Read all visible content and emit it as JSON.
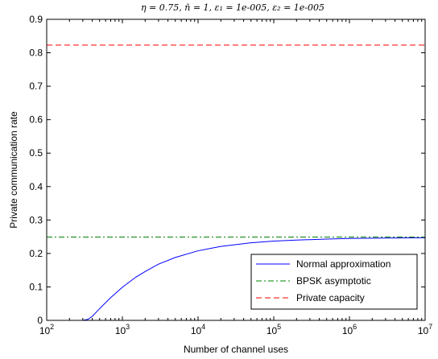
{
  "chart_data": {
    "type": "line",
    "title": "η = 0.75, n̄ = 1, ε₁ = 1e-005, ε₂ = 1e-005",
    "xlabel": "Number of channel uses",
    "ylabel": "Private communication rate",
    "xscale": "log",
    "xlim": [
      100,
      10000000
    ],
    "ylim": [
      0,
      0.9
    ],
    "grid": false,
    "legend_position": "bottom-right",
    "x_ticks": [
      {
        "value": 100,
        "base": "10",
        "exp": "2"
      },
      {
        "value": 1000,
        "base": "10",
        "exp": "3"
      },
      {
        "value": 10000,
        "base": "10",
        "exp": "4"
      },
      {
        "value": 100000,
        "base": "10",
        "exp": "5"
      },
      {
        "value": 1000000,
        "base": "10",
        "exp": "6"
      },
      {
        "value": 10000000,
        "base": "10",
        "exp": "7"
      }
    ],
    "y_ticks": [
      {
        "value": 0,
        "label": "0"
      },
      {
        "value": 0.1,
        "label": "0.1"
      },
      {
        "value": 0.2,
        "label": "0.2"
      },
      {
        "value": 0.3,
        "label": "0.3"
      },
      {
        "value": 0.4,
        "label": "0.4"
      },
      {
        "value": 0.5,
        "label": "0.5"
      },
      {
        "value": 0.6,
        "label": "0.6"
      },
      {
        "value": 0.7,
        "label": "0.7"
      },
      {
        "value": 0.8,
        "label": "0.8"
      },
      {
        "value": 0.9,
        "label": "0.9"
      }
    ],
    "series": [
      {
        "name": "Normal approximation",
        "color": "#0000ff",
        "dash": "solid",
        "x": [
          100,
          200,
          300,
          350,
          400,
          500,
          700,
          1000,
          1500,
          2000,
          3000,
          5000,
          10000,
          20000,
          50000,
          100000,
          200000,
          500000,
          1000000,
          3000000,
          10000000
        ],
        "y": [
          0,
          0,
          0,
          0.003,
          0.012,
          0.035,
          0.068,
          0.099,
          0.129,
          0.146,
          0.168,
          0.188,
          0.208,
          0.221,
          0.232,
          0.237,
          0.24,
          0.243,
          0.245,
          0.246,
          0.247
        ]
      },
      {
        "name": "BPSK asymptotic",
        "color": "#008000",
        "dash": "dashdot",
        "x": [
          100,
          10000000
        ],
        "y": [
          0.249,
          0.249
        ]
      },
      {
        "name": "Private capacity",
        "color": "#ff0000",
        "dash": "dashed",
        "x": [
          100,
          10000000
        ],
        "y": [
          0.823,
          0.823
        ]
      }
    ]
  }
}
